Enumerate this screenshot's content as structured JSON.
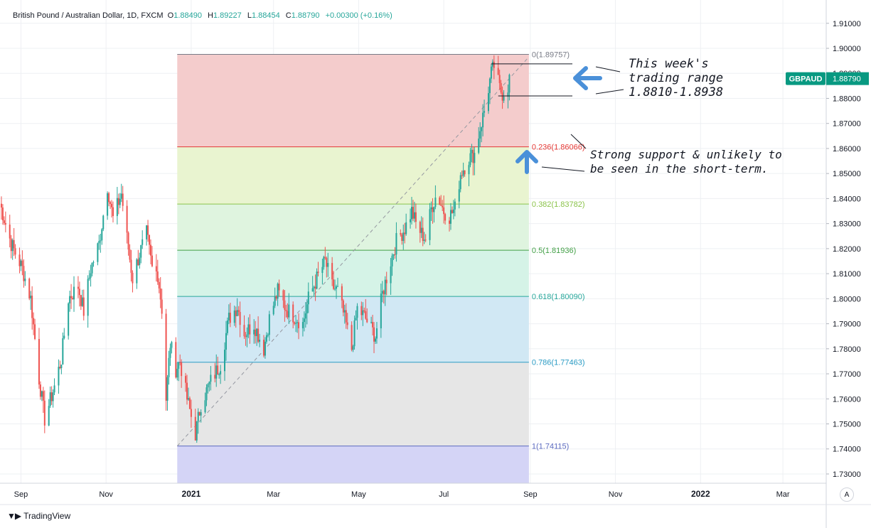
{
  "header": {
    "symbol": "British Pound / Australian Dollar, 1D, FXCM",
    "open_label": "O",
    "open": "1.88490",
    "high_label": "H",
    "high": "1.89227",
    "low_label": "L",
    "low": "1.88454",
    "close_label": "C",
    "close": "1.88790",
    "change": "+0.00300 (+0.16%)"
  },
  "price_tag": {
    "label": "GBPAUD",
    "value": "1.88790",
    "color": "#089981"
  },
  "annotations": {
    "weekly_range": [
      "This week's",
      "trading range",
      "1.8810-1.8938"
    ],
    "support": [
      "Strong support & unlikely to",
      "be seen in the short-term."
    ]
  },
  "footer": {
    "brand": "TradingView",
    "auto_button": "A"
  },
  "colors": {
    "up": "#26a69a",
    "down": "#ef5350",
    "arrow": "#4a90d9"
  },
  "chart_data": {
    "type": "candlestick",
    "symbol": "GBPAUD",
    "timeframe": "1D",
    "y_axis": {
      "ticks": [
        "1.73000",
        "1.74000",
        "1.75000",
        "1.76000",
        "1.77000",
        "1.78000",
        "1.79000",
        "1.80000",
        "1.81000",
        "1.82000",
        "1.83000",
        "1.84000",
        "1.85000",
        "1.86000",
        "1.87000",
        "1.88000",
        "1.89000",
        "1.90000",
        "1.91000"
      ],
      "ylim": [
        1.7263,
        1.9193
      ]
    },
    "x_axis": {
      "ticks": [
        "Sep",
        "Nov",
        "2021",
        "Mar",
        "May",
        "Jul",
        "Sep",
        "Nov",
        "2022",
        "Mar"
      ],
      "bold": [
        "2021",
        "2022"
      ],
      "xlim": [
        "2020-08-17",
        "2022-03-31"
      ]
    },
    "fibonacci": {
      "start": {
        "date": "2020-12-22",
        "price": 1.74115
      },
      "end": {
        "date": "2021-07-20",
        "price": 1.89757
      },
      "extend_to": "2021-08-31",
      "levels": [
        {
          "label": "0(1.89757)",
          "price": 1.89757,
          "color": "#787b86"
        },
        {
          "label": "0.236(1.86066)",
          "price": 1.86066,
          "color": "#e53935"
        },
        {
          "label": "0.382(1.83782)",
          "price": 1.83782,
          "color": "#8bc34a"
        },
        {
          "label": "0.5(1.81936)",
          "price": 1.81936,
          "color": "#43a047"
        },
        {
          "label": "0.618(1.80090)",
          "price": 1.8009,
          "color": "#26a69a"
        },
        {
          "label": "0.786(1.77463)",
          "price": 1.77463,
          "color": "#2a9bc4"
        },
        {
          "label": "1(1.74115)",
          "price": 1.74115,
          "color": "#5c6bc0"
        }
      ],
      "zone_fills": [
        "#f4cccc",
        "#e9f4d0",
        "#dff4df",
        "#d5f3e7",
        "#d1e8f4",
        "#e6e6e6",
        "#d4d4f6"
      ]
    },
    "weekly_range": {
      "high": 1.8938,
      "low": 1.881
    },
    "anchors": [
      [
        "2020-08-17",
        1.838
      ],
      [
        "2020-08-25",
        1.822
      ],
      [
        "2020-09-02",
        1.812
      ],
      [
        "2020-09-08",
        1.8
      ],
      [
        "2020-09-14",
        1.768
      ],
      [
        "2020-09-18",
        1.752
      ],
      [
        "2020-09-25",
        1.765
      ],
      [
        "2020-09-30",
        1.776
      ],
      [
        "2020-10-05",
        1.8
      ],
      [
        "2020-10-12",
        1.805
      ],
      [
        "2020-10-16",
        1.795
      ],
      [
        "2020-10-21",
        1.812
      ],
      [
        "2020-10-27",
        1.822
      ],
      [
        "2020-11-02",
        1.845
      ],
      [
        "2020-11-06",
        1.832
      ],
      [
        "2020-11-12",
        1.842
      ],
      [
        "2020-11-16",
        1.824
      ],
      [
        "2020-11-20",
        1.808
      ],
      [
        "2020-11-25",
        1.818
      ],
      [
        "2020-11-30",
        1.826
      ],
      [
        "2020-12-04",
        1.812
      ],
      [
        "2020-12-08",
        1.81
      ],
      [
        "2020-12-11",
        1.796
      ],
      [
        "2020-12-14",
        1.76
      ],
      [
        "2020-12-17",
        1.782
      ],
      [
        "2020-12-21",
        1.772
      ],
      [
        "2020-12-24",
        1.775
      ],
      [
        "2020-12-29",
        1.76
      ],
      [
        "2021-01-04",
        1.746
      ],
      [
        "2021-01-08",
        1.758
      ],
      [
        "2021-01-15",
        1.767
      ],
      [
        "2021-01-22",
        1.774
      ],
      [
        "2021-01-28",
        1.792
      ],
      [
        "2021-02-03",
        1.797
      ],
      [
        "2021-02-08",
        1.786
      ],
      [
        "2021-02-15",
        1.79
      ],
      [
        "2021-02-22",
        1.78
      ],
      [
        "2021-02-26",
        1.792
      ],
      [
        "2021-03-04",
        1.803
      ],
      [
        "2021-03-10",
        1.796
      ],
      [
        "2021-03-16",
        1.793
      ],
      [
        "2021-03-22",
        1.79
      ],
      [
        "2021-03-26",
        1.8
      ],
      [
        "2021-04-01",
        1.808
      ],
      [
        "2021-04-07",
        1.815
      ],
      [
        "2021-04-12",
        1.805
      ],
      [
        "2021-04-16",
        1.803
      ],
      [
        "2021-04-21",
        1.792
      ],
      [
        "2021-04-26",
        1.78
      ],
      [
        "2021-04-30",
        1.796
      ],
      [
        "2021-05-05",
        1.793
      ],
      [
        "2021-05-10",
        1.788
      ],
      [
        "2021-05-13",
        1.785
      ],
      [
        "2021-05-18",
        1.802
      ],
      [
        "2021-05-24",
        1.815
      ],
      [
        "2021-05-28",
        1.823
      ],
      [
        "2021-06-03",
        1.828
      ],
      [
        "2021-06-08",
        1.835
      ],
      [
        "2021-06-11",
        1.83
      ],
      [
        "2021-06-15",
        1.826
      ],
      [
        "2021-06-18",
        1.824
      ],
      [
        "2021-06-22",
        1.836
      ],
      [
        "2021-06-26",
        1.842
      ],
      [
        "2021-07-01",
        1.835
      ],
      [
        "2021-07-05",
        1.833
      ],
      [
        "2021-07-09",
        1.836
      ],
      [
        "2021-07-13",
        1.85
      ],
      [
        "2021-07-19",
        1.856
      ],
      [
        "2021-07-23",
        1.858
      ],
      [
        "2021-07-27",
        1.868
      ],
      [
        "2021-07-30",
        1.875
      ],
      [
        "2021-08-04",
        1.89
      ],
      [
        "2021-08-06",
        1.893
      ],
      [
        "2021-08-10",
        1.884
      ],
      [
        "2021-08-12",
        1.882
      ],
      [
        "2021-08-16",
        1.8849
      ],
      [
        "2021-08-17",
        1.8879
      ]
    ]
  }
}
